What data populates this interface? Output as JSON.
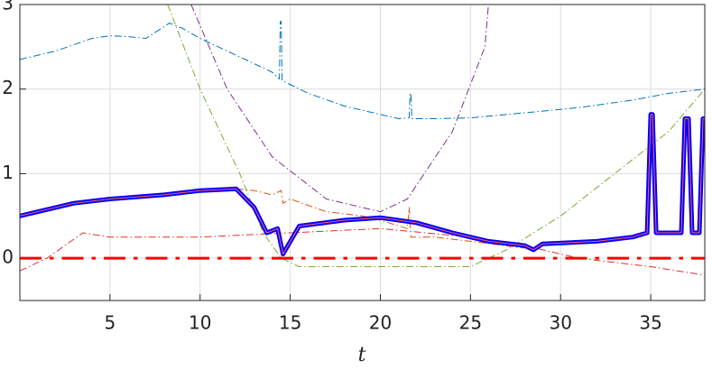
{
  "chart_data": {
    "type": "line",
    "xlabel": "t",
    "xlim": [
      0,
      38
    ],
    "ylim": [
      -0.5,
      3
    ],
    "xticks": [
      5,
      10,
      15,
      20,
      25,
      30,
      35
    ],
    "yticks": [
      0,
      1,
      2,
      3
    ],
    "grid": true,
    "series": [
      {
        "color": "#0072bd",
        "style": "dashdot",
        "linewidth": 1,
        "x": [
          0,
          2,
          4,
          5,
          6,
          7,
          8.3,
          9,
          10,
          12,
          14,
          14.4,
          14.45,
          14.5,
          14.55,
          16,
          18,
          20,
          21,
          21.6,
          21.65,
          21.7,
          21.75,
          23,
          25,
          28,
          31,
          34,
          36,
          38
        ],
        "values": [
          2.35,
          2.45,
          2.6,
          2.63,
          2.62,
          2.6,
          2.78,
          2.72,
          2.6,
          2.4,
          2.2,
          2.12,
          2.8,
          2.8,
          2.1,
          1.95,
          1.8,
          1.7,
          1.65,
          1.66,
          1.95,
          1.95,
          1.65,
          1.65,
          1.66,
          1.72,
          1.78,
          1.87,
          1.95,
          2.0
        ]
      },
      {
        "color": "#d95319",
        "style": "dashdot",
        "linewidth": 1,
        "x": [
          12,
          13,
          14,
          14.5,
          14.6,
          15,
          17,
          19,
          20,
          21.5,
          21.6,
          21.7,
          23,
          25,
          28
        ],
        "values": [
          0.82,
          0.8,
          0.75,
          0.8,
          0.65,
          0.7,
          0.55,
          0.5,
          0.45,
          0.35,
          0.6,
          0.25,
          0.25,
          0.2,
          0.12
        ]
      },
      {
        "color": "#77ac30",
        "style": "dashdot",
        "linewidth": 1,
        "x": [
          8.2,
          10,
          12.2,
          13.5,
          14.5,
          15.5,
          20,
          25,
          27,
          30,
          33,
          36,
          38
        ],
        "values": [
          3,
          2,
          1,
          0.3,
          0,
          -0.1,
          -0.1,
          -0.1,
          0.1,
          0.5,
          1.0,
          1.5,
          2.0
        ]
      },
      {
        "color": "#7e2f8e",
        "style": "dashdot",
        "linewidth": 1,
        "x": [
          9.5,
          11.5,
          14,
          17,
          20,
          21.5,
          24,
          25.8,
          26
        ],
        "values": [
          3,
          2,
          1.2,
          0.7,
          0.55,
          0.7,
          1.5,
          2.5,
          3
        ]
      },
      {
        "color": "#e03030",
        "style": "dashdot",
        "linewidth": 1,
        "x": [
          0,
          1.5,
          2.5,
          3.5,
          5,
          10,
          15,
          20,
          25,
          28,
          31,
          35,
          38
        ],
        "values": [
          -0.15,
          0,
          0.15,
          0.3,
          0.25,
          0.25,
          0.3,
          0.35,
          0.25,
          0.15,
          0,
          -0.1,
          -0.2
        ]
      },
      {
        "color": "#ff0000",
        "style": "dashdot",
        "linewidth": 3,
        "x": [
          0,
          38
        ],
        "values": [
          0,
          0
        ]
      },
      {
        "color": "#0000ff",
        "inner_color": "#ff6060",
        "style": "solid",
        "linewidth": 5,
        "x": [
          0,
          3,
          5,
          8,
          10,
          12,
          13,
          13.7,
          14.3,
          14.6,
          15.5,
          18,
          20,
          22,
          24,
          26,
          28,
          28.5,
          29,
          32,
          34,
          34.8,
          35,
          35.1,
          35.3,
          36.7,
          36.9,
          37.1,
          37.3,
          37.7,
          37.9,
          38
        ],
        "values": [
          0.5,
          0.65,
          0.7,
          0.75,
          0.8,
          0.82,
          0.6,
          0.3,
          0.35,
          0.05,
          0.38,
          0.45,
          0.48,
          0.42,
          0.3,
          0.2,
          0.15,
          0.1,
          0.17,
          0.2,
          0.25,
          0.3,
          1.7,
          1.7,
          0.3,
          0.3,
          1.65,
          1.65,
          0.3,
          0.3,
          1.65,
          1.65
        ]
      }
    ]
  }
}
